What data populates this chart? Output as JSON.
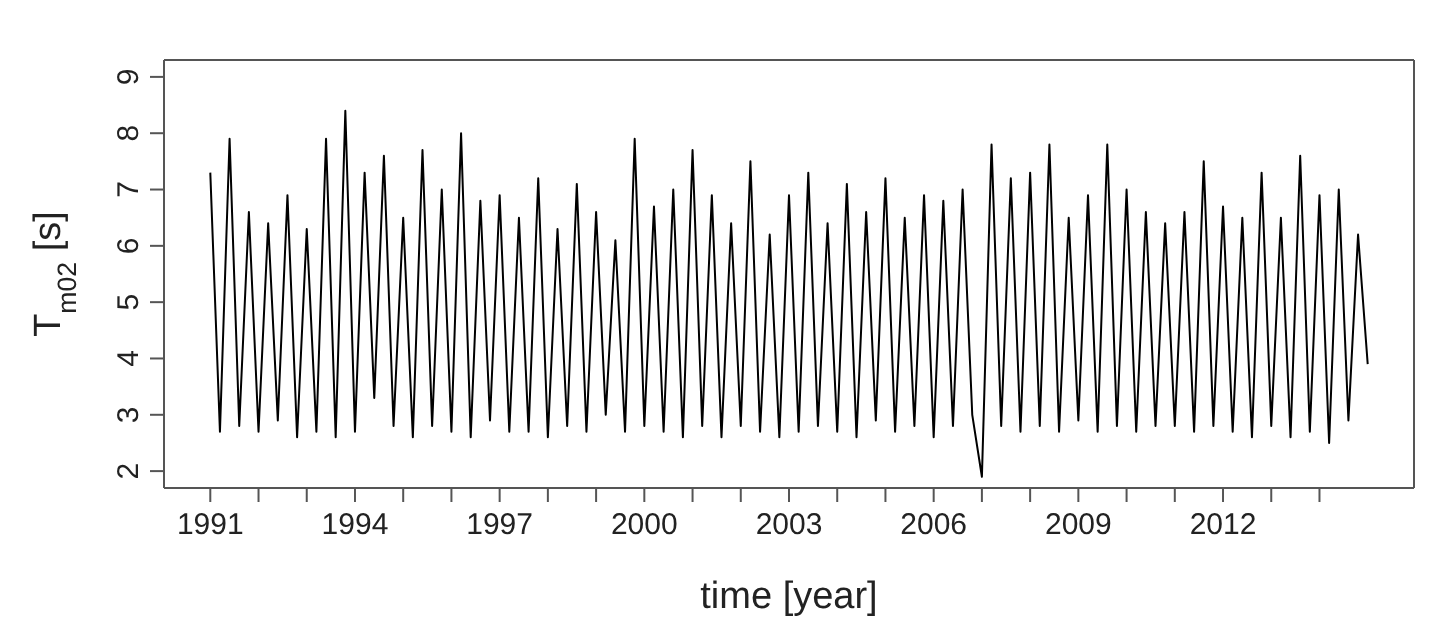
{
  "chart_data": {
    "type": "line",
    "xlabel": "time [year]",
    "ylabel": "T$_{m02}$ [s]",
    "xlim": [
      1990.04,
      2015.96
    ],
    "xticks": [
      1991,
      {
        "value": 1992,
        "label": null
      },
      {
        "value": 1993,
        "label": null
      },
      1994,
      {
        "value": 1995,
        "label": null
      },
      {
        "value": 1996,
        "label": null
      },
      1997,
      {
        "value": 1998,
        "label": null
      },
      {
        "value": 1999,
        "label": null
      },
      2000,
      {
        "value": 2001,
        "label": null
      },
      {
        "value": 2002,
        "label": null
      },
      2003,
      {
        "value": 2004,
        "label": null
      },
      {
        "value": 2005,
        "label": null
      },
      2006,
      {
        "value": 2007,
        "label": null
      },
      {
        "value": 2008,
        "label": null
      },
      2009,
      {
        "value": 2010,
        "label": null
      },
      {
        "value": 2011,
        "label": null
      },
      2012,
      {
        "value": 2013,
        "label": null
      },
      {
        "value": 2014,
        "label": null
      }
    ],
    "ylim": [
      1.7,
      9.3
    ],
    "yticks": [
      2,
      3,
      4,
      5,
      6,
      7,
      8,
      9
    ],
    "marker": "none",
    "line_style": "solid",
    "x": [
      1991.0,
      1991.2,
      1991.4,
      1991.6,
      1991.8,
      1992.0,
      1992.2,
      1992.4,
      1992.6,
      1992.8,
      1993.0,
      1993.2,
      1993.4,
      1993.6,
      1993.8,
      1994.0,
      1994.2,
      1994.4,
      1994.6,
      1994.8,
      1995.0,
      1995.2,
      1995.4,
      1995.6,
      1995.8,
      1996.0,
      1996.2,
      1996.4,
      1996.6,
      1996.8,
      1997.0,
      1997.2,
      1997.4,
      1997.6,
      1997.8,
      1998.0,
      1998.2,
      1998.4,
      1998.6,
      1998.8,
      1999.0,
      1999.2,
      1999.4,
      1999.6,
      1999.8,
      2000.0,
      2000.2,
      2000.4,
      2000.6,
      2000.8,
      2001.0,
      2001.2,
      2001.4,
      2001.6,
      2001.8,
      2002.0,
      2002.2,
      2002.4,
      2002.6,
      2002.8,
      2003.0,
      2003.2,
      2003.4,
      2003.6,
      2003.8,
      2004.0,
      2004.2,
      2004.4,
      2004.6,
      2004.8,
      2005.0,
      2005.2,
      2005.4,
      2005.6,
      2005.8,
      2006.0,
      2006.2,
      2006.4,
      2006.6,
      2006.8,
      2007.0,
      2007.2,
      2007.4,
      2007.6,
      2007.8,
      2008.0,
      2008.2,
      2008.4,
      2008.6,
      2008.8,
      2009.0,
      2009.2,
      2009.4,
      2009.6,
      2009.8,
      2010.0,
      2010.2,
      2010.4,
      2010.6,
      2010.8,
      2011.0,
      2011.2,
      2011.4,
      2011.6,
      2011.8,
      2012.0,
      2012.2,
      2012.4,
      2012.6,
      2012.8,
      2013.0,
      2013.2,
      2013.4,
      2013.6,
      2013.8,
      2014.0,
      2014.2,
      2014.4,
      2014.6,
      2014.8,
      2015.0
    ],
    "series": [
      {
        "color": "#000000",
        "values": [
          7.3,
          2.7,
          7.9,
          2.8,
          6.6,
          2.7,
          6.4,
          2.9,
          6.9,
          2.6,
          6.3,
          2.7,
          7.9,
          2.6,
          8.4,
          2.7,
          7.3,
          3.3,
          7.6,
          2.8,
          6.5,
          2.6,
          7.7,
          2.8,
          7.0,
          2.7,
          8.0,
          2.6,
          6.8,
          2.9,
          6.9,
          2.7,
          6.5,
          2.7,
          7.2,
          2.6,
          6.3,
          2.8,
          7.1,
          2.7,
          6.6,
          3.0,
          6.1,
          2.7,
          7.9,
          2.8,
          6.7,
          2.7,
          7.0,
          2.6,
          7.7,
          2.8,
          6.9,
          2.6,
          6.4,
          2.8,
          7.5,
          2.7,
          6.2,
          2.6,
          6.9,
          2.7,
          7.3,
          2.8,
          6.4,
          2.7,
          7.1,
          2.6,
          6.6,
          2.9,
          7.2,
          2.7,
          6.5,
          2.8,
          6.9,
          2.6,
          6.8,
          2.8,
          7.0,
          3.0,
          1.9,
          7.8,
          2.8,
          7.2,
          2.7,
          7.3,
          2.8,
          7.8,
          2.7,
          6.5,
          2.9,
          6.9,
          2.7,
          7.8,
          2.8,
          7.0,
          2.7,
          6.6,
          2.8,
          6.4,
          2.8,
          6.6,
          2.7,
          7.5,
          2.8,
          6.7,
          2.7,
          6.5,
          2.6,
          7.3,
          2.8,
          6.5,
          2.6,
          7.6,
          2.7,
          6.9,
          2.5,
          7.0,
          2.9,
          6.2,
          3.9
        ]
      }
    ]
  }
}
